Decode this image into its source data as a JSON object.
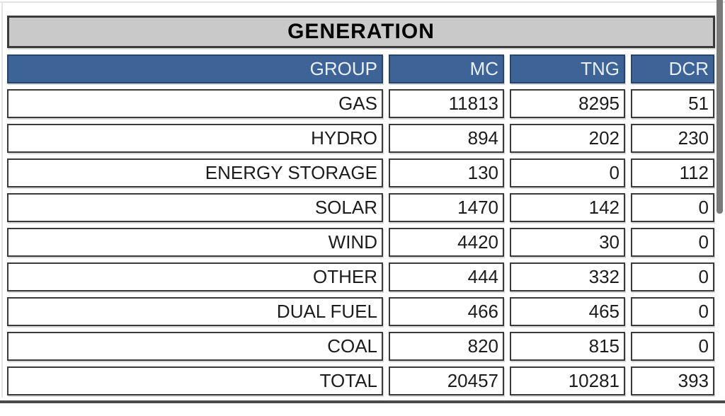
{
  "title": "GENERATION",
  "table": {
    "columns": [
      "GROUP",
      "MC",
      "TNG",
      "DCR"
    ],
    "rows": [
      [
        "GAS",
        "11813",
        "8295",
        "51"
      ],
      [
        "HYDRO",
        "894",
        "202",
        "230"
      ],
      [
        "ENERGY STORAGE",
        "130",
        "0",
        "112"
      ],
      [
        "SOLAR",
        "1470",
        "142",
        "0"
      ],
      [
        "WIND",
        "4420",
        "30",
        "0"
      ],
      [
        "OTHER",
        "444",
        "332",
        "0"
      ],
      [
        "DUAL FUEL",
        "466",
        "465",
        "0"
      ],
      [
        "COAL",
        "820",
        "815",
        "0"
      ],
      [
        "TOTAL",
        "20457",
        "10281",
        "393"
      ]
    ]
  },
  "chart_data": {
    "type": "table",
    "title": "GENERATION",
    "columns": [
      "GROUP",
      "MC",
      "TNG",
      "DCR"
    ],
    "categories": [
      "GAS",
      "HYDRO",
      "ENERGY STORAGE",
      "SOLAR",
      "WIND",
      "OTHER",
      "DUAL FUEL",
      "COAL",
      "TOTAL"
    ],
    "series": [
      {
        "name": "MC",
        "values": [
          11813,
          894,
          130,
          1470,
          4420,
          444,
          466,
          820,
          20457
        ]
      },
      {
        "name": "TNG",
        "values": [
          8295,
          202,
          0,
          142,
          30,
          332,
          465,
          815,
          10281
        ]
      },
      {
        "name": "DCR",
        "values": [
          51,
          230,
          112,
          0,
          0,
          0,
          0,
          0,
          393
        ]
      }
    ]
  },
  "colors": {
    "header_bg": "#3e6397",
    "header_text": "#e8f0fb",
    "header_border": "#26456e",
    "title_bg": "#c9c9c9",
    "cell_border": "#3a3a3a",
    "text": "#1c1c1c",
    "scrollbar": "#7a7a7a",
    "bottom_rule": "#4a4a4a"
  }
}
